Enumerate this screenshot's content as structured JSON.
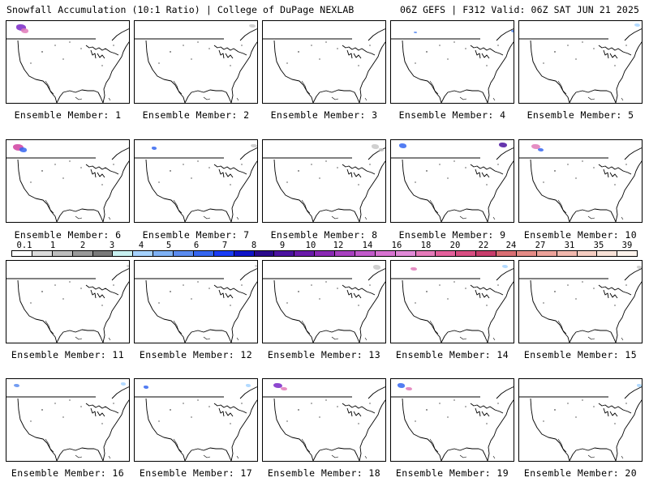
{
  "header": {
    "left_title": "Snowfall Accumulation (10:1 Ratio) | College of DuPage NEXLAB",
    "right_title": "06Z GEFS | F312 Valid: 06Z SAT JUN 21 2025"
  },
  "legend": {
    "tick_labels": [
      "0.1",
      "1",
      "2",
      "3",
      "4",
      "5",
      "6",
      "7",
      "8",
      "9",
      "10",
      "12",
      "14",
      "16",
      "18",
      "20",
      "22",
      "24",
      "27",
      "31",
      "35",
      "39"
    ],
    "colors": [
      "#ffffff",
      "#dcdcdc",
      "#bebebe",
      "#9a9a9a",
      "#7a7a7a",
      "#c8f0f0",
      "#a6d3ff",
      "#7fb2f5",
      "#5b8cf0",
      "#3566f0",
      "#1a3cf5",
      "#0f14c8",
      "#2a0a8c",
      "#4b12a0",
      "#6a1aaa",
      "#8a28b4",
      "#a840c0",
      "#c25acb",
      "#d873d2",
      "#e18ad8",
      "#e67aba",
      "#e4609c",
      "#d84e82",
      "#c83d6c",
      "#d96e73",
      "#e48b86",
      "#eca29a",
      "#f1b8ae",
      "#f5cdc2",
      "#f9e2d8",
      "#fdf3ec"
    ]
  },
  "members": [
    {
      "label": "Ensemble Member: 1",
      "icons": [
        "snow-swath-icon"
      ]
    },
    {
      "label": "Ensemble Member: 2",
      "icons": [
        "snow-swath-icon"
      ]
    },
    {
      "label": "Ensemble Member: 3",
      "icons": [
        "snow-swath-icon"
      ]
    },
    {
      "label": "Ensemble Member: 4",
      "icons": [
        "snow-swath-icon"
      ]
    },
    {
      "label": "Ensemble Member: 5",
      "icons": [
        "snow-swath-icon"
      ]
    },
    {
      "label": "Ensemble Member: 6",
      "icons": [
        "snow-swath-icon"
      ]
    },
    {
      "label": "Ensemble Member: 7",
      "icons": [
        "snow-swath-icon"
      ]
    },
    {
      "label": "Ensemble Member: 8",
      "icons": [
        "snow-swath-icon"
      ]
    },
    {
      "label": "Ensemble Member: 9",
      "icons": [
        "snow-swath-icon"
      ]
    },
    {
      "label": "Ensemble Member: 10",
      "icons": [
        "snow-swath-icon"
      ]
    },
    {
      "label": "Ensemble Member: 11",
      "icons": [
        "snow-swath-icon"
      ]
    },
    {
      "label": "Ensemble Member: 12",
      "icons": [
        "snow-swath-icon"
      ]
    },
    {
      "label": "Ensemble Member: 13",
      "icons": [
        "snow-swath-icon"
      ]
    },
    {
      "label": "Ensemble Member: 14",
      "icons": [
        "snow-swath-icon"
      ]
    },
    {
      "label": "Ensemble Member: 15",
      "icons": [
        "snow-swath-icon"
      ]
    },
    {
      "label": "Ensemble Member: 16",
      "icons": [
        "snow-swath-icon"
      ]
    },
    {
      "label": "Ensemble Member: 17",
      "icons": [
        "snow-swath-icon"
      ]
    },
    {
      "label": "Ensemble Member: 18",
      "icons": [
        "snow-swath-icon"
      ]
    },
    {
      "label": "Ensemble Member: 19",
      "icons": [
        "snow-swath-icon"
      ]
    },
    {
      "label": "Ensemble Member: 20",
      "icons": [
        "snow-swath-icon"
      ]
    }
  ]
}
